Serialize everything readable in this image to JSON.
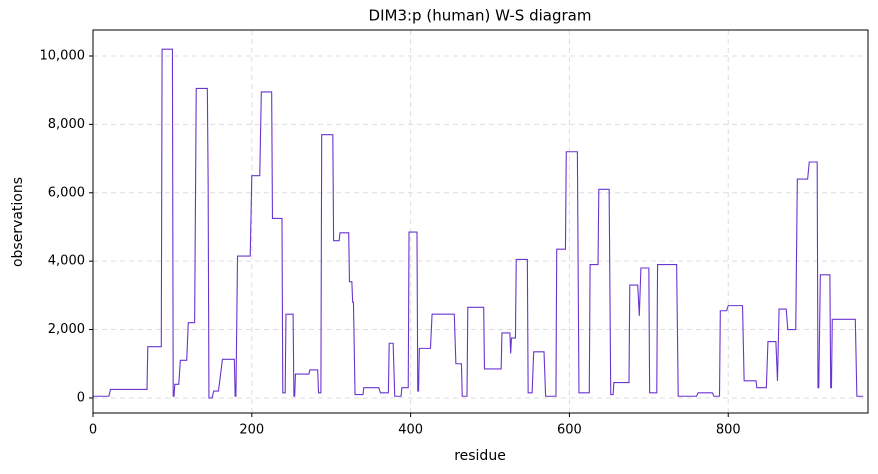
{
  "chart_data": {
    "type": "line",
    "title": "DIM3:p (human) W-S diagram",
    "x_label": "residue",
    "y_label": "observations",
    "x": [
      0,
      20,
      22,
      68,
      69,
      86,
      87,
      100,
      101,
      102,
      103,
      108,
      110,
      118,
      120,
      128,
      130,
      144,
      145,
      145,
      146,
      150,
      152,
      158,
      163,
      178,
      179,
      180,
      182,
      198,
      200,
      210,
      212,
      225,
      226,
      238,
      239,
      242,
      243,
      252,
      253,
      254,
      255,
      272,
      273,
      283,
      284,
      287,
      288,
      302,
      303,
      310,
      311,
      322,
      323,
      326,
      327,
      328,
      330,
      340,
      341,
      360,
      362,
      372,
      373,
      378,
      380,
      388,
      389,
      397,
      398,
      408,
      409,
      410,
      411,
      425,
      427,
      455,
      457,
      464,
      465,
      471,
      472,
      492,
      493,
      514,
      515,
      525,
      526,
      526,
      527,
      532,
      533,
      547,
      548,
      553,
      555,
      568,
      570,
      583,
      584,
      595,
      596,
      610,
      612,
      625,
      626,
      636,
      637,
      650,
      652,
      655,
      656,
      675,
      676,
      686,
      688,
      688,
      690,
      700,
      701,
      710,
      711,
      735,
      737,
      760,
      762,
      780,
      782,
      789,
      790,
      798,
      800,
      818,
      820,
      835,
      836,
      848,
      850,
      860,
      862,
      862,
      864,
      873,
      875,
      885,
      887,
      900,
      902,
      912,
      913,
      914,
      916,
      928,
      929,
      930,
      931,
      960,
      962,
      970
    ],
    "series": [
      {
        "name": "observations",
        "color": "#6a35cf",
        "values": [
          50,
          50,
          250,
          250,
          1500,
          1500,
          10200,
          10200,
          50,
          50,
          400,
          400,
          1100,
          1100,
          2200,
          2200,
          9050,
          9050,
          6300,
          6300,
          0,
          0,
          200,
          200,
          1130,
          1130,
          50,
          50,
          4150,
          4150,
          6500,
          6500,
          8950,
          8950,
          5250,
          5250,
          150,
          150,
          2450,
          2450,
          50,
          50,
          700,
          700,
          820,
          820,
          150,
          150,
          7700,
          7700,
          4600,
          4600,
          4830,
          4830,
          3400,
          3400,
          2800,
          2800,
          100,
          100,
          300,
          300,
          150,
          150,
          1600,
          1600,
          50,
          50,
          300,
          300,
          4850,
          4850,
          200,
          200,
          1450,
          1450,
          2450,
          2450,
          1000,
          1000,
          50,
          50,
          2650,
          2650,
          850,
          850,
          1900,
          1900,
          1300,
          1300,
          1750,
          1750,
          4050,
          4050,
          150,
          150,
          1350,
          1350,
          50,
          50,
          4350,
          4350,
          7200,
          7200,
          150,
          150,
          3900,
          3900,
          6100,
          6100,
          100,
          100,
          450,
          450,
          3300,
          3300,
          2400,
          2400,
          3800,
          3800,
          150,
          150,
          3900,
          3900,
          50,
          50,
          150,
          150,
          50,
          50,
          2550,
          2550,
          2700,
          2700,
          500,
          500,
          300,
          300,
          1650,
          1650,
          500,
          500,
          2600,
          2600,
          2000,
          2000,
          6400,
          6400,
          6900,
          6900,
          300,
          300,
          3600,
          3600,
          300,
          300,
          2300,
          2300,
          50,
          50
        ]
      }
    ],
    "xlim": [
      0,
      976
    ],
    "ylim": [
      -440,
      10760
    ],
    "xticks": [
      0,
      200,
      400,
      600,
      800
    ],
    "yticks": [
      0,
      {
        "value": 2000,
        "label": "2,000"
      },
      {
        "value": 4000,
        "label": "4,000"
      },
      {
        "value": 6000,
        "label": "6,000"
      },
      {
        "value": 8000,
        "label": "8,000"
      },
      {
        "value": 10000,
        "label": "10,000"
      }
    ],
    "grid": true
  }
}
